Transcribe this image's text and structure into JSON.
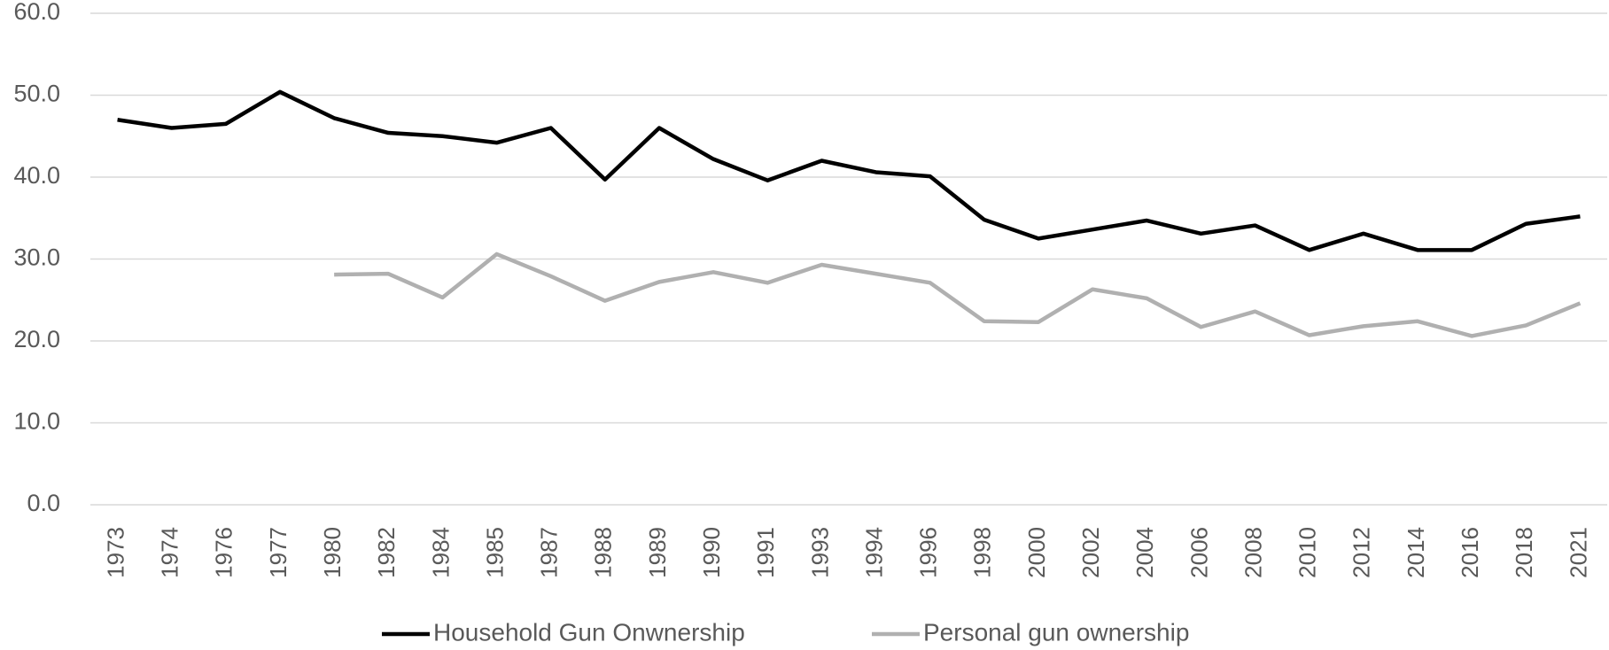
{
  "chart_data": {
    "type": "line",
    "categories": [
      "1973",
      "1974",
      "1976",
      "1977",
      "1980",
      "1982",
      "1984",
      "1985",
      "1987",
      "1988",
      "1989",
      "1990",
      "1991",
      "1993",
      "1994",
      "1996",
      "1998",
      "2000",
      "2002",
      "2004",
      "2006",
      "2008",
      "2010",
      "2012",
      "2014",
      "2016",
      "2018",
      "2021"
    ],
    "series": [
      {
        "name": "Household Gun Onwnership",
        "color": "#000000",
        "values": [
          47.0,
          46.0,
          46.5,
          50.4,
          47.2,
          45.4,
          45.0,
          44.2,
          46.0,
          39.7,
          46.0,
          42.2,
          39.6,
          42.0,
          40.6,
          40.1,
          34.8,
          32.5,
          33.6,
          34.7,
          33.1,
          34.1,
          31.1,
          33.1,
          31.1,
          31.1,
          34.3,
          35.2
        ]
      },
      {
        "name": "Personal gun ownership",
        "color": "#b0b0b0",
        "values": [
          null,
          null,
          null,
          null,
          28.1,
          28.2,
          25.3,
          30.6,
          27.9,
          24.9,
          27.2,
          28.4,
          27.1,
          29.3,
          28.2,
          27.1,
          22.4,
          22.3,
          26.3,
          25.2,
          21.7,
          23.6,
          20.7,
          21.8,
          22.4,
          20.6,
          21.9,
          24.6
        ]
      }
    ],
    "ylim": [
      0,
      60
    ],
    "yticks": [
      {
        "value": 0,
        "label": "0.0"
      },
      {
        "value": 10,
        "label": "10.0"
      },
      {
        "value": 20,
        "label": "20.0"
      },
      {
        "value": 30,
        "label": "30.0"
      },
      {
        "value": 40,
        "label": "40.0"
      },
      {
        "value": 50,
        "label": "50.0"
      },
      {
        "value": 60,
        "label": "60.0"
      }
    ],
    "grid": true,
    "legend": "bottom"
  }
}
